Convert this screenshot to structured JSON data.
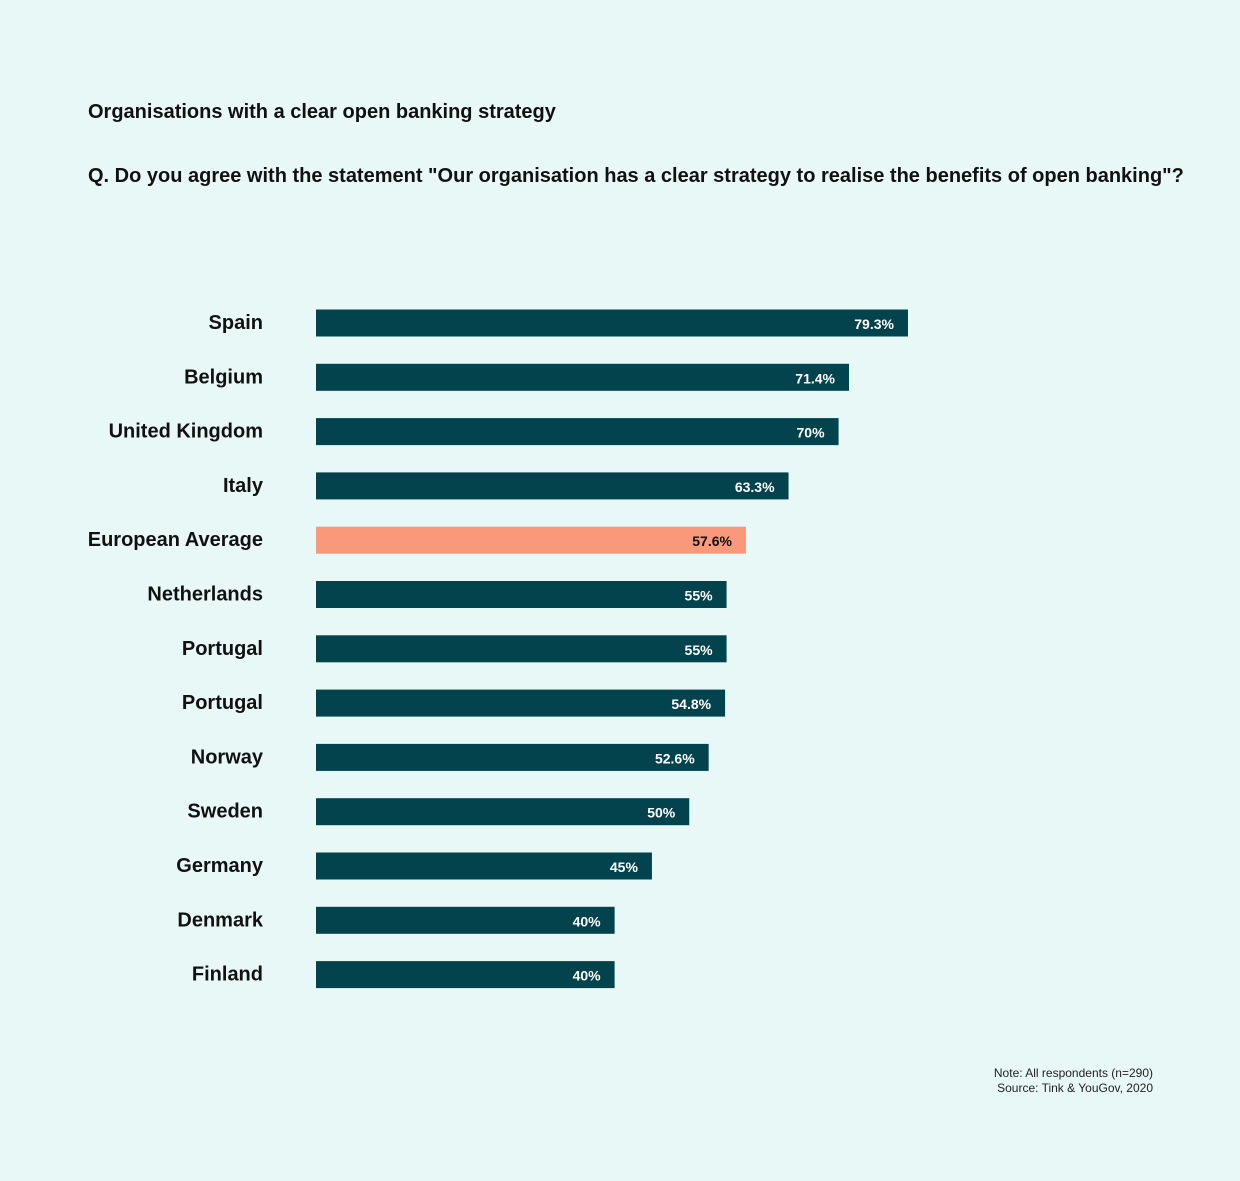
{
  "header": {
    "title": "Organisations with a clear open banking strategy",
    "question": "Q. Do you agree with the statement \"Our organisation has a clear strategy to realise the benefits of open banking\"?"
  },
  "footer": {
    "note": "Note: All respondents (n=290)",
    "source": "Source: Tink & YouGov, 2020"
  },
  "colors": {
    "background": "#e8f8f6",
    "bar": "#02434d",
    "highlight": "#f7997a",
    "bar_text": "#ffffff",
    "highlight_text": "#111111"
  },
  "chart_data": {
    "type": "bar",
    "orientation": "horizontal",
    "title": "Organisations with a clear open banking strategy",
    "categories": [
      "Spain",
      "Belgium",
      "United Kingdom",
      "Italy",
      "European Average",
      "Netherlands",
      "Portugal",
      "Portugal",
      "Norway",
      "Sweden",
      "Germany",
      "Denmark",
      "Finland"
    ],
    "values": [
      79.3,
      71.4,
      70,
      63.3,
      57.6,
      55,
      55,
      54.8,
      52.6,
      50,
      45,
      40,
      40
    ],
    "value_labels": [
      "79.3%",
      "71.4%",
      "70%",
      "63.3%",
      "57.6%",
      "55%",
      "55%",
      "54.8%",
      "52.6%",
      "50%",
      "45%",
      "40%",
      "40%"
    ],
    "highlight_category": "European Average",
    "unit": "%",
    "xlim": [
      0,
      100
    ],
    "grid": false,
    "legend": "none"
  }
}
